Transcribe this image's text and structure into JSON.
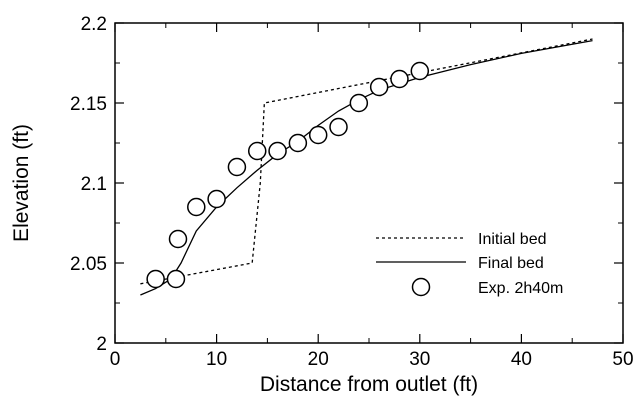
{
  "chart_data": {
    "type": "line",
    "title": "",
    "xlabel": "Distance from outlet (ft)",
    "ylabel": "Elevation (ft)",
    "xlim": [
      0,
      50
    ],
    "ylim": [
      2,
      2.2
    ],
    "x_ticks": [
      0,
      10,
      20,
      30,
      40,
      50
    ],
    "x_tick_labels": [
      "0",
      "10",
      "20",
      "30",
      "40",
      "50"
    ],
    "y_ticks": [
      2,
      2.05,
      2.1,
      2.15,
      2.2
    ],
    "y_tick_labels": [
      "2",
      "2.05",
      "2.1",
      "2.15",
      "2.2"
    ],
    "grid": false,
    "legend_position": "lower-right",
    "series": [
      {
        "name": "Initial bed",
        "style": "dashed",
        "color": "#000000",
        "x": [
          2.5,
          13.5,
          14.3,
          14.7,
          47
        ],
        "y": [
          2.037,
          2.05,
          2.1,
          2.15,
          2.19
        ]
      },
      {
        "name": "Final bed",
        "style": "solid",
        "color": "#000000",
        "x": [
          2.5,
          4,
          5.5,
          6.5,
          8,
          10,
          12,
          14,
          16,
          18,
          20,
          22,
          24,
          26,
          28,
          30,
          35,
          40,
          47
        ],
        "y": [
          2.03,
          2.034,
          2.04,
          2.05,
          2.07,
          2.085,
          2.097,
          2.108,
          2.118,
          2.126,
          2.136,
          2.145,
          2.152,
          2.158,
          2.162,
          2.166,
          2.174,
          2.181,
          2.189
        ]
      },
      {
        "name": "Exp. 2h40m",
        "style": "markers",
        "color": "#000000",
        "x": [
          4,
          6,
          6.2,
          8,
          10,
          12,
          14,
          16,
          18,
          20,
          22,
          24,
          26,
          28,
          30
        ],
        "y": [
          2.04,
          2.04,
          2.065,
          2.085,
          2.09,
          2.11,
          2.12,
          2.12,
          2.125,
          2.13,
          2.135,
          2.15,
          2.16,
          2.165,
          2.17
        ]
      }
    ]
  }
}
